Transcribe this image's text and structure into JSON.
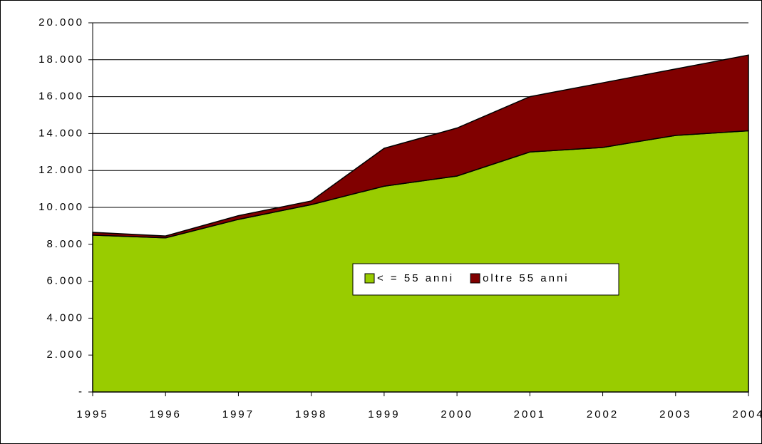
{
  "chart_data": {
    "type": "stacked_area",
    "categories": [
      "1995",
      "1996",
      "1997",
      "1998",
      "1999",
      "2000",
      "2001",
      "2002",
      "2003",
      "2004"
    ],
    "series": [
      {
        "name": "< = 55 anni",
        "color": "#99cc00",
        "values": [
          8500,
          8350,
          9350,
          10150,
          11150,
          11700,
          13000,
          13250,
          13900,
          14150
        ]
      },
      {
        "name": "oltre 55 anni",
        "color": "#800000",
        "values": [
          150,
          100,
          200,
          200,
          2050,
          2600,
          3000,
          3500,
          3600,
          4100
        ]
      }
    ],
    "ylim": [
      0,
      20000
    ],
    "yticks": [
      {
        "value": 0,
        "label": "-"
      },
      {
        "value": 2000,
        "label": "2.000"
      },
      {
        "value": 4000,
        "label": "4.000"
      },
      {
        "value": 6000,
        "label": "6.000"
      },
      {
        "value": 8000,
        "label": "8.000"
      },
      {
        "value": 10000,
        "label": "10.000"
      },
      {
        "value": 12000,
        "label": "12.000"
      },
      {
        "value": 14000,
        "label": "14.000"
      },
      {
        "value": 16000,
        "label": "16.000"
      },
      {
        "value": 18000,
        "label": "18.000"
      },
      {
        "value": 20000,
        "label": "20.000"
      }
    ],
    "grid": true
  }
}
